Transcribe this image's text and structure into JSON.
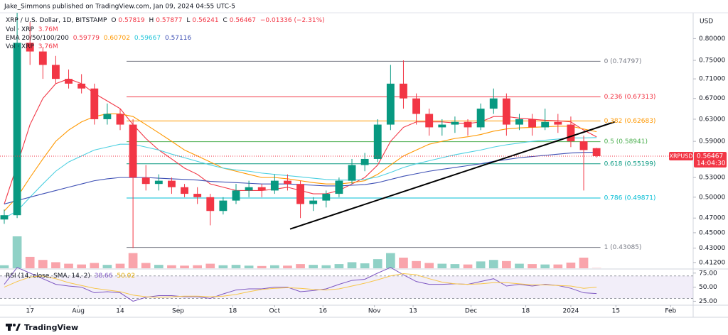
{
  "header": {
    "text": "Jake_Simmons published on TradingView.com, Jan 09, 2024 04:55 UTC-5"
  },
  "footer": {
    "brand": "TradingView"
  },
  "chart_data": {
    "type": "candlestick",
    "title": "XRP / U.S. Dollar, 1D, BITSTAMP",
    "ohlc_legend": [
      {
        "label": "O",
        "value": 0.57819
      },
      {
        "label": "H",
        "value": 0.57877
      },
      {
        "label": "L",
        "value": 0.56241
      },
      {
        "label": "C",
        "value": 0.56467
      }
    ],
    "change": "−0.01336 (−2.31%)",
    "volume_legends": [
      {
        "name": "Vol · XRP",
        "value_label": "3.76M"
      },
      {
        "name": "Vol · XRP",
        "value_label": "3.76M"
      }
    ],
    "ema_legend": "EMA 20/50/100/200",
    "y_axis_label": "USD",
    "log_scale": true,
    "grid": false,
    "ylim": [
      0.405,
      0.86
    ],
    "yticks": [
      {
        "value": 0.8,
        "label": "0.80000"
      },
      {
        "value": 0.75,
        "label": "0.75000"
      },
      {
        "value": 0.71,
        "label": "0.71000"
      },
      {
        "value": 0.67,
        "label": "0.67000"
      },
      {
        "value": 0.63,
        "label": "0.63000"
      },
      {
        "value": 0.59,
        "label": "0.59000"
      },
      {
        "value": 0.53,
        "label": "0.53000"
      },
      {
        "value": 0.5,
        "label": "0.50000"
      },
      {
        "value": 0.47,
        "label": "0.47000"
      },
      {
        "value": 0.45,
        "label": "0.45000"
      },
      {
        "value": 0.43,
        "label": "0.43000"
      },
      {
        "value": 0.412,
        "label": "0.41200"
      }
    ],
    "xlim": [
      -0.33,
      53.5
    ],
    "xticks": [
      {
        "value": 2,
        "label": "17"
      },
      {
        "value": 5.75,
        "label": "Aug"
      },
      {
        "value": 9,
        "label": "14"
      },
      {
        "value": 13.5,
        "label": "Sep"
      },
      {
        "value": 17.75,
        "label": "18"
      },
      {
        "value": 21,
        "label": "Oct"
      },
      {
        "value": 24.75,
        "label": "16"
      },
      {
        "value": 28.75,
        "label": "Nov"
      },
      {
        "value": 31.75,
        "label": "13"
      },
      {
        "value": 36.25,
        "label": "Dec"
      },
      {
        "value": 40.5,
        "label": "18"
      },
      {
        "value": 44,
        "label": "2024"
      },
      {
        "value": 47.5,
        "label": "15"
      },
      {
        "value": 51.75,
        "label": "Feb"
      }
    ],
    "up_color": "#089981",
    "down_color": "#f23645",
    "open": [
      0.468,
      0.474,
      0.79,
      0.77,
      0.74,
      0.71,
      0.7,
      0.69,
      0.63,
      0.64,
      0.62,
      0.53,
      0.52,
      0.525,
      0.515,
      0.505,
      0.5,
      0.48,
      0.495,
      0.51,
      0.515,
      0.51,
      0.525,
      0.52,
      0.49,
      0.495,
      0.505,
      0.525,
      0.55,
      0.56,
      0.62,
      0.7,
      0.67,
      0.64,
      0.615,
      0.62,
      0.625,
      0.615,
      0.65,
      0.67,
      0.62,
      0.63,
      0.615,
      0.625,
      0.62,
      0.59,
      0.57819
    ],
    "high": [
      0.482,
      0.88,
      0.84,
      0.78,
      0.76,
      0.73,
      0.72,
      0.7,
      0.66,
      0.65,
      0.63,
      0.55,
      0.535,
      0.53,
      0.52,
      0.515,
      0.505,
      0.5,
      0.52,
      0.525,
      0.52,
      0.535,
      0.535,
      0.525,
      0.5,
      0.51,
      0.53,
      0.56,
      0.57,
      0.63,
      0.74,
      0.75,
      0.68,
      0.65,
      0.63,
      0.635,
      0.63,
      0.66,
      0.69,
      0.68,
      0.64,
      0.64,
      0.65,
      0.64,
      0.635,
      0.6,
      0.57877
    ],
    "low": [
      0.462,
      0.47,
      0.74,
      0.71,
      0.7,
      0.69,
      0.68,
      0.62,
      0.62,
      0.61,
      0.43,
      0.51,
      0.51,
      0.505,
      0.5,
      0.49,
      0.46,
      0.475,
      0.49,
      0.5,
      0.5,
      0.505,
      0.51,
      0.47,
      0.48,
      0.485,
      0.5,
      0.52,
      0.54,
      0.555,
      0.61,
      0.65,
      0.62,
      0.6,
      0.6,
      0.605,
      0.6,
      0.61,
      0.64,
      0.6,
      0.61,
      0.6,
      0.61,
      0.605,
      0.58,
      0.51,
      0.56241
    ],
    "close": [
      0.474,
      0.79,
      0.77,
      0.74,
      0.71,
      0.7,
      0.69,
      0.63,
      0.64,
      0.62,
      0.53,
      0.52,
      0.525,
      0.515,
      0.505,
      0.5,
      0.48,
      0.495,
      0.51,
      0.515,
      0.51,
      0.525,
      0.52,
      0.49,
      0.495,
      0.505,
      0.525,
      0.55,
      0.56,
      0.62,
      0.7,
      0.67,
      0.64,
      0.615,
      0.62,
      0.625,
      0.615,
      0.65,
      0.67,
      0.62,
      0.63,
      0.615,
      0.625,
      0.62,
      0.59,
      0.575,
      0.56467
    ],
    "volume": [
      40,
      420,
      150,
      110,
      80,
      60,
      50,
      70,
      45,
      60,
      200,
      70,
      45,
      40,
      35,
      40,
      60,
      40,
      45,
      35,
      30,
      40,
      35,
      55,
      45,
      40,
      55,
      80,
      65,
      120,
      200,
      140,
      95,
      70,
      60,
      55,
      50,
      90,
      110,
      95,
      60,
      55,
      50,
      50,
      75,
      140,
      3.76
    ],
    "series": [
      {
        "color": "#f23645",
        "values": [
          0.49,
          0.55,
          0.62,
          0.67,
          0.7,
          0.71,
          0.7,
          0.68,
          0.665,
          0.65,
          0.62,
          0.595,
          0.575,
          0.56,
          0.545,
          0.535,
          0.52,
          0.515,
          0.51,
          0.51,
          0.51,
          0.512,
          0.515,
          0.51,
          0.505,
          0.505,
          0.51,
          0.52,
          0.53,
          0.55,
          0.59,
          0.615,
          0.625,
          0.625,
          0.625,
          0.623,
          0.622,
          0.625,
          0.635,
          0.635,
          0.632,
          0.63,
          0.628,
          0.627,
          0.625,
          0.61,
          0.59779
        ]
      },
      {
        "color": "#ff9800",
        "values": [
          0.48,
          0.5,
          0.53,
          0.56,
          0.59,
          0.61,
          0.625,
          0.635,
          0.64,
          0.64,
          0.635,
          0.62,
          0.605,
          0.59,
          0.575,
          0.565,
          0.555,
          0.545,
          0.54,
          0.535,
          0.53,
          0.53,
          0.528,
          0.525,
          0.522,
          0.52,
          0.52,
          0.522,
          0.525,
          0.535,
          0.55,
          0.565,
          0.575,
          0.585,
          0.59,
          0.595,
          0.598,
          0.602,
          0.608,
          0.612,
          0.614,
          0.615,
          0.616,
          0.617,
          0.617,
          0.612,
          0.60702
        ]
      },
      {
        "color": "#4dd0e1",
        "values": [
          0.47,
          0.48,
          0.5,
          0.52,
          0.54,
          0.555,
          0.565,
          0.575,
          0.58,
          0.585,
          0.585,
          0.58,
          0.575,
          0.568,
          0.562,
          0.556,
          0.55,
          0.545,
          0.542,
          0.54,
          0.537,
          0.535,
          0.533,
          0.531,
          0.529,
          0.527,
          0.526,
          0.526,
          0.527,
          0.531,
          0.538,
          0.546,
          0.552,
          0.557,
          0.562,
          0.567,
          0.571,
          0.575,
          0.58,
          0.584,
          0.587,
          0.59,
          0.592,
          0.594,
          0.596,
          0.596,
          0.59667
        ]
      },
      {
        "color": "#3f51b5",
        "values": [
          0.49,
          0.495,
          0.5,
          0.505,
          0.51,
          0.515,
          0.52,
          0.525,
          0.528,
          0.53,
          0.53,
          0.53,
          0.529,
          0.528,
          0.527,
          0.526,
          0.524,
          0.523,
          0.522,
          0.521,
          0.52,
          0.52,
          0.52,
          0.519,
          0.518,
          0.517,
          0.517,
          0.518,
          0.519,
          0.522,
          0.527,
          0.532,
          0.536,
          0.54,
          0.543,
          0.546,
          0.549,
          0.552,
          0.556,
          0.559,
          0.562,
          0.564,
          0.566,
          0.568,
          0.57,
          0.571,
          0.57116
        ]
      }
    ],
    "price_tag": {
      "symbol": "XRPUSD",
      "countdown": "14:04:30"
    },
    "fibonacci": {
      "x": [
        9.5,
        46.3
      ],
      "levels": [
        {
          "value": 0.74797,
          "label": "0 (0.74797)",
          "color": "#787b86"
        },
        {
          "value": 0.67313,
          "label": "0.236 (0.67313)",
          "color": "#f23645"
        },
        {
          "value": 0.62683,
          "label": "0.382 (0.62683)",
          "color": "#ff9800"
        },
        {
          "value": 0.58941,
          "label": "0.5 (0.58941)",
          "color": "#4caf50"
        },
        {
          "value": 0.55199,
          "label": "0.618 (0.55199)",
          "color": "#089981"
        },
        {
          "value": 0.49871,
          "label": "0.786 (0.49871)",
          "color": "#00bcd4"
        },
        {
          "value": 0.43085,
          "label": "1 (0.43085)",
          "color": "#787b86"
        }
      ]
    },
    "trendline": {
      "x": [
        22.2,
        47.4
      ],
      "values": [
        0.455,
        0.625
      ],
      "color": "#000000"
    },
    "rsi": {
      "title": "RSI (14, close, SMA, 14, 2)",
      "ylim": [
        18,
        81
      ],
      "yticks": [
        {
          "value": 75,
          "label": "75.00"
        },
        {
          "value": 50,
          "label": "50.00"
        },
        {
          "value": 25,
          "label": "25.00"
        }
      ],
      "band": [
        30,
        70
      ],
      "series": [
        {
          "color": "#7e57c2",
          "values": [
            55,
            85,
            75,
            65,
            55,
            52,
            50,
            40,
            42,
            40,
            25,
            32,
            35,
            35,
            33,
            33,
            30,
            38,
            45,
            47,
            47,
            50,
            50,
            42,
            44,
            47,
            55,
            62,
            64,
            75,
            85,
            72,
            60,
            55,
            55,
            56,
            55,
            60,
            65,
            52,
            55,
            52,
            55,
            53,
            48,
            40,
            38.66
          ]
        },
        {
          "color": "#f7c548",
          "values": [
            50,
            60,
            68,
            70,
            65,
            58,
            53,
            48,
            45,
            42,
            36,
            33,
            32,
            33,
            34,
            34,
            33,
            34,
            37,
            42,
            46,
            48,
            49,
            48,
            46,
            45,
            47,
            52,
            57,
            63,
            70,
            74,
            72,
            65,
            59,
            56,
            55,
            56,
            58,
            58,
            56,
            54,
            54,
            53,
            52,
            48,
            50.02
          ]
        }
      ]
    }
  }
}
